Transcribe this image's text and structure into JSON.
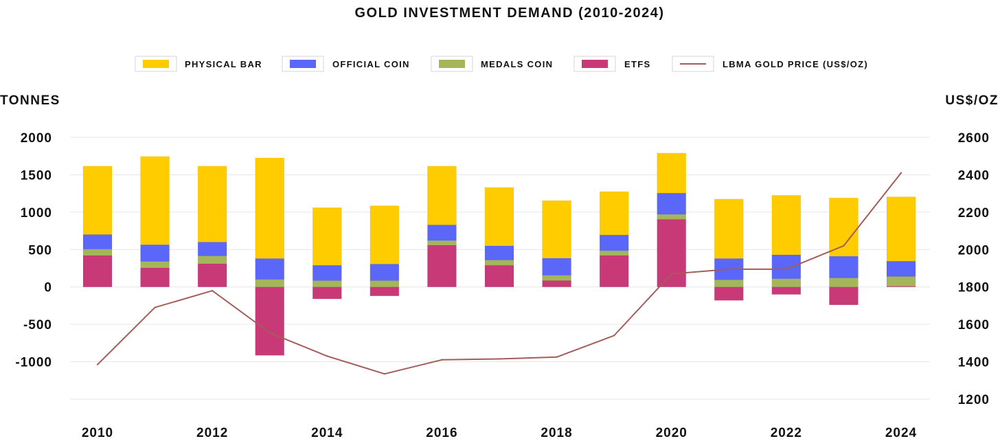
{
  "chart_data": {
    "type": "bar",
    "title": "GOLD INVESTMENT DEMAND (2010-2024)",
    "ylabel": "TONNES",
    "y2label": "US$/OZ",
    "ylim": [
      -1500,
      2000
    ],
    "y2lim": [
      1200,
      2600
    ],
    "yticks": [
      "2000",
      "1500",
      "1000",
      "500",
      "0",
      "-500",
      "-1000"
    ],
    "yticks_values": [
      2000,
      1500,
      1000,
      500,
      0,
      -500,
      -1000
    ],
    "y2ticks": [
      "2600",
      "2400",
      "2200",
      "2000",
      "1800",
      "1600",
      "1400",
      "1200"
    ],
    "y2ticks_values": [
      2600,
      2400,
      2200,
      2000,
      1800,
      1600,
      1400,
      1200
    ],
    "x": [
      2010,
      2011,
      2012,
      2013,
      2014,
      2015,
      2016,
      2017,
      2018,
      2019,
      2020,
      2021,
      2022,
      2023,
      2024
    ],
    "xtick_labels": [
      "2010",
      "2012",
      "2014",
      "2016",
      "2018",
      "2020",
      "2022",
      "2024"
    ],
    "xtick_values": [
      2010,
      2012,
      2014,
      2016,
      2018,
      2020,
      2022,
      2024
    ],
    "legend_position": "top-center",
    "grid": true,
    "series": [
      {
        "name": "PHYSICAL BAR",
        "kind": "bar",
        "color": "#FFCC00",
        "values": [
          915,
          1180,
          1015,
          1345,
          770,
          780,
          785,
          780,
          770,
          580,
          535,
          795,
          795,
          780,
          860
        ]
      },
      {
        "name": "OFFICIAL COIN",
        "kind": "bar",
        "color": "#5B67F8",
        "values": [
          195,
          225,
          185,
          280,
          205,
          220,
          210,
          190,
          230,
          210,
          285,
          285,
          320,
          290,
          205
        ]
      },
      {
        "name": "MEDALS COIN",
        "kind": "bar",
        "color": "#A4B55A",
        "values": [
          85,
          85,
          105,
          100,
          85,
          85,
          60,
          70,
          70,
          65,
          65,
          95,
          110,
          120,
          130
        ]
      },
      {
        "name": "ETFS",
        "kind": "bar",
        "color": "#C83A77",
        "values": [
          420,
          255,
          310,
          -915,
          -160,
          -120,
          560,
          290,
          85,
          420,
          905,
          -180,
          -100,
          -240,
          10
        ]
      },
      {
        "name": "LBMA GOLD PRICE (US$/OZ)",
        "kind": "line",
        "axis": "right",
        "color": "#A45C58",
        "values": [
          1385,
          1690,
          1780,
          1555,
          1430,
          1335,
          1410,
          1415,
          1425,
          1540,
          1870,
          1895,
          1895,
          2020,
          2410
        ]
      }
    ]
  }
}
